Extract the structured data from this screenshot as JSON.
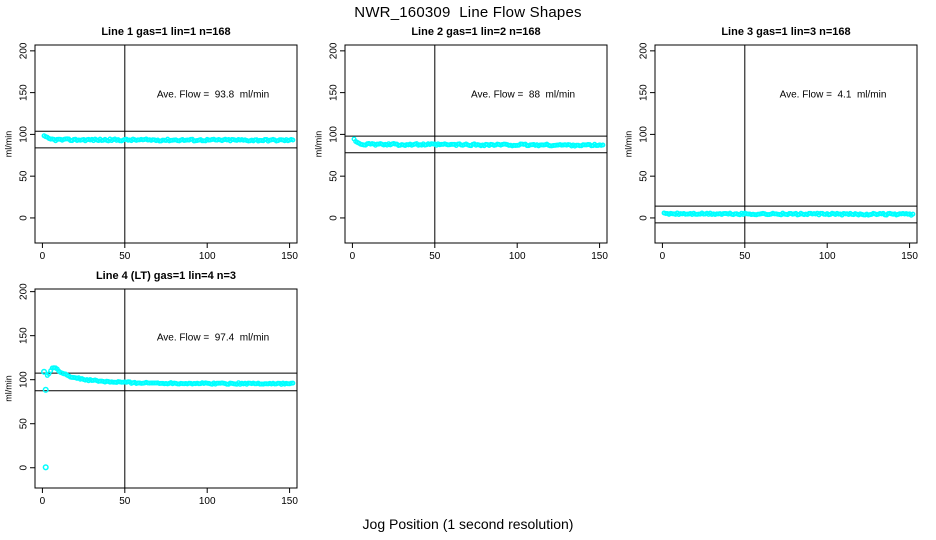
{
  "figure_title": "NWR_160309  Line Flow Shapes",
  "x_axis_label": "Jog Position (1 second resolution)",
  "colors": {
    "point_color": "#00ffff",
    "axis_color": "#000000",
    "text_color": "#000000",
    "background": "#ffffff"
  },
  "chart_data": [
    {
      "type": "scatter",
      "title": "Line 1 gas=1 lin=1 n=168",
      "annotation": "Ave. Flow =  93.8  ml/min",
      "ave_flow_ml_min": 93.8,
      "n": 168,
      "ylabel": "ml/min",
      "xticks": [
        0,
        50,
        100,
        150
      ],
      "yticks": [
        0,
        50,
        100,
        150,
        200
      ],
      "xlim": [
        -4.5,
        154.5
      ],
      "ylim": [
        -30,
        207
      ],
      "vline_x": 50,
      "hlines": [
        103.8,
        83.8
      ],
      "grid": false,
      "marker": "open-circle",
      "points": {
        "x_start": 1,
        "x_end": 152,
        "x_step": 1,
        "profile": [
          [
            1,
            97.5
          ],
          [
            4,
            94.5
          ],
          [
            8,
            93.5
          ],
          [
            152,
            93
          ]
        ],
        "jitter": 1.2
      },
      "extra_points": []
    },
    {
      "type": "scatter",
      "title": "Line 2 gas=1 lin=2 n=168",
      "annotation": "Ave. Flow =  88  ml/min",
      "ave_flow_ml_min": 88,
      "n": 168,
      "ylabel": "ml/min",
      "xticks": [
        0,
        50,
        100,
        150
      ],
      "yticks": [
        0,
        50,
        100,
        150,
        200
      ],
      "xlim": [
        -4.5,
        154.5
      ],
      "ylim": [
        -30,
        207
      ],
      "vline_x": 50,
      "hlines": [
        98,
        78
      ],
      "grid": false,
      "marker": "open-circle",
      "points": {
        "x_start": 1,
        "x_end": 152,
        "x_step": 1,
        "profile": [
          [
            1,
            93.5
          ],
          [
            4,
            89.5
          ],
          [
            8,
            88
          ],
          [
            152,
            87
          ]
        ],
        "jitter": 1.2
      },
      "extra_points": []
    },
    {
      "type": "scatter",
      "title": "Line 3 gas=1 lin=3 n=168",
      "annotation": "Ave. Flow =  4.1  ml/min",
      "ave_flow_ml_min": 4.1,
      "n": 168,
      "ylabel": "ml/min",
      "xticks": [
        0,
        50,
        100,
        150
      ],
      "yticks": [
        0,
        50,
        100,
        150,
        200
      ],
      "xlim": [
        -4.5,
        154.5
      ],
      "ylim": [
        -30,
        207
      ],
      "vline_x": 50,
      "hlines": [
        14.1,
        -5.9
      ],
      "grid": false,
      "marker": "open-circle",
      "points": {
        "x_start": 1,
        "x_end": 152,
        "x_step": 1,
        "profile": [
          [
            1,
            5
          ],
          [
            152,
            4.3
          ]
        ],
        "jitter": 1.1
      },
      "extra_points": []
    },
    {
      "type": "scatter",
      "title": "Line 4 (LT) gas=1 lin=4 n=3",
      "annotation": "Ave. Flow =  97.4  ml/min",
      "ave_flow_ml_min": 97.4,
      "n": 3,
      "ylabel": "ml/min",
      "xticks": [
        0,
        50,
        100,
        150
      ],
      "yticks": [
        0,
        50,
        100,
        150,
        200
      ],
      "xlim": [
        -4.5,
        154.5
      ],
      "ylim": [
        -23,
        203
      ],
      "vline_x": 50,
      "hlines": [
        107.4,
        87.4
      ],
      "grid": false,
      "marker": "open-circle",
      "points": {
        "x_start": 3,
        "x_end": 152,
        "x_step": 1,
        "profile": [
          [
            3,
            104
          ],
          [
            5,
            111
          ],
          [
            7,
            114
          ],
          [
            10,
            110
          ],
          [
            14,
            105.5
          ],
          [
            20,
            102
          ],
          [
            28,
            99.5
          ],
          [
            40,
            97.5
          ],
          [
            60,
            96.3
          ],
          [
            100,
            95.7
          ],
          [
            152,
            95.5
          ]
        ],
        "jitter": 0.9
      },
      "extra_points": [
        [
          1,
          109
        ],
        [
          2,
          0.5
        ],
        [
          2,
          88.5
        ]
      ]
    }
  ]
}
